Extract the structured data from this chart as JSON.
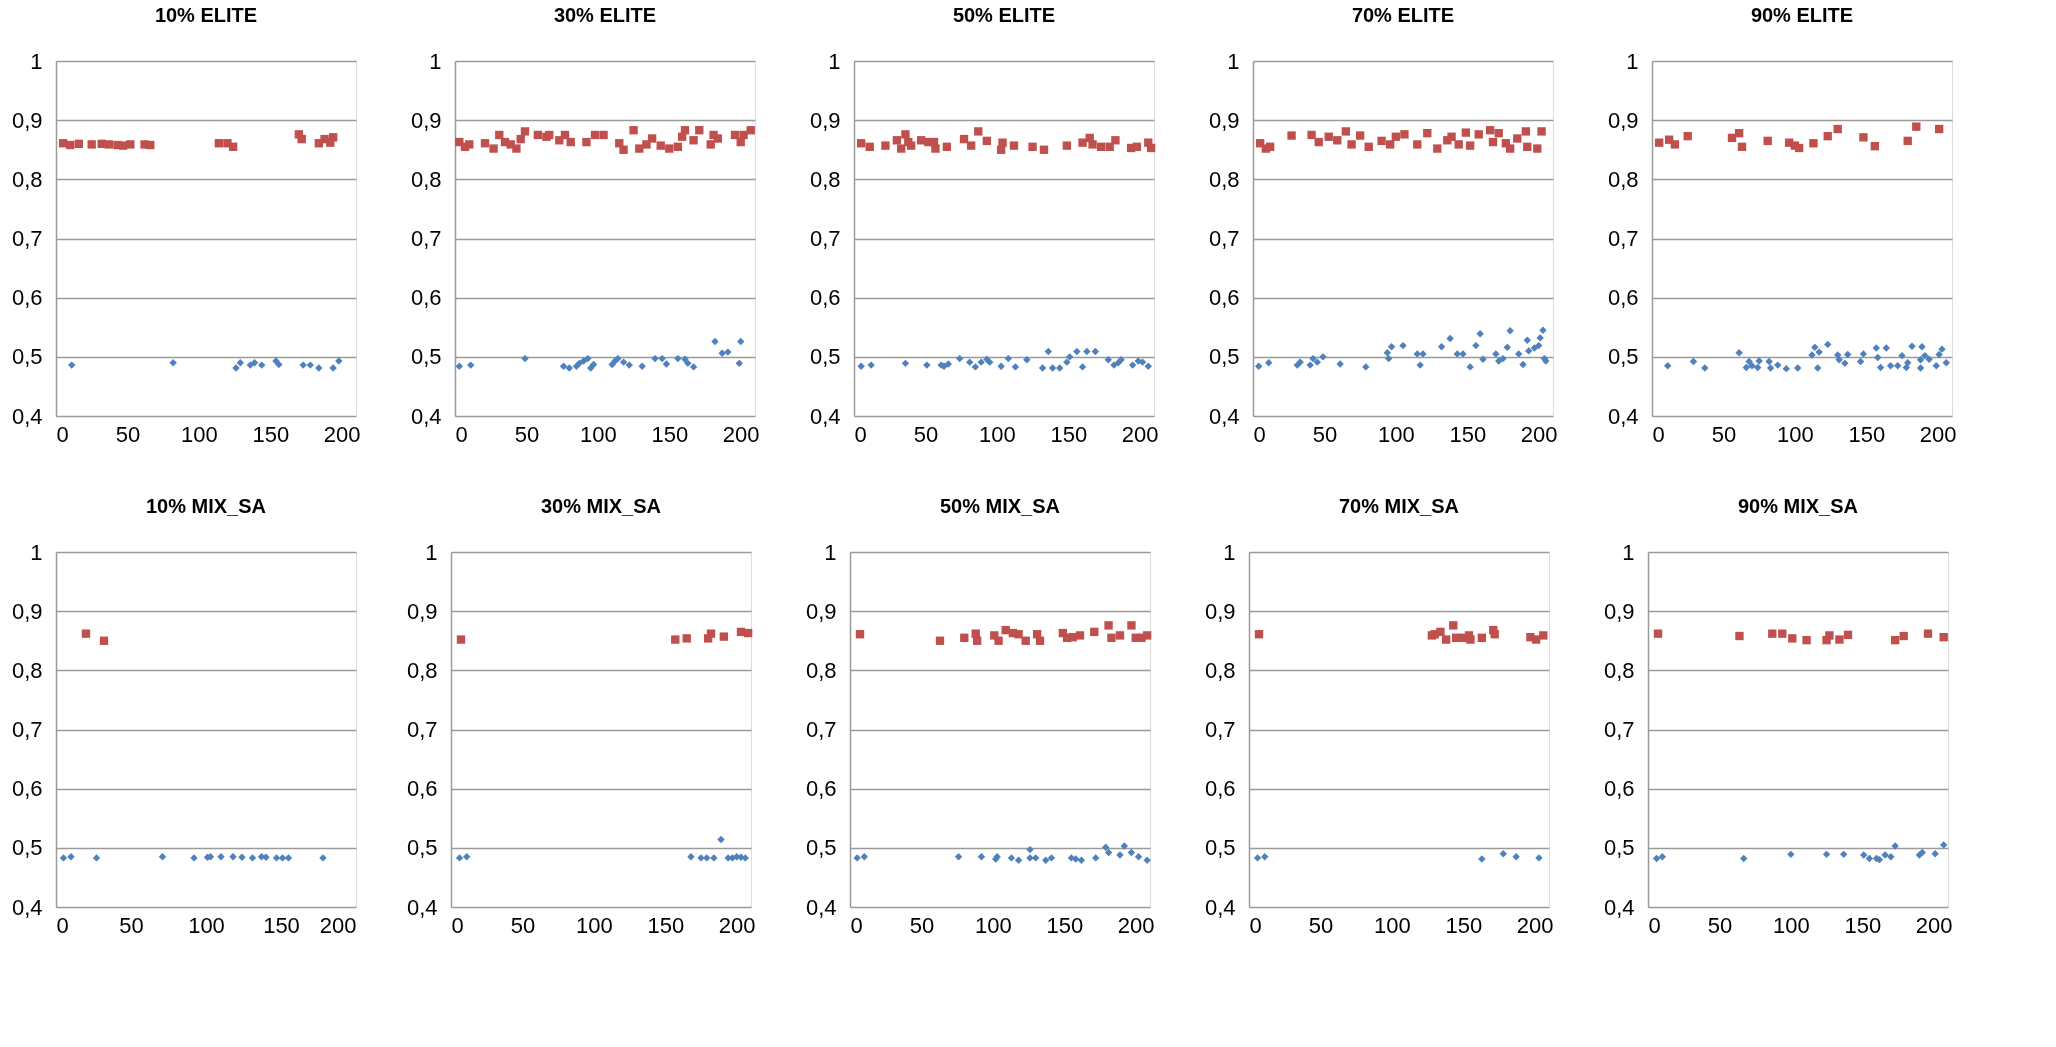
{
  "chart_data": [
    {
      "type": "scatter",
      "title": "10% ELITE",
      "xlim": [
        0,
        210
      ],
      "xticks": [
        0,
        50,
        100,
        150,
        200
      ],
      "ylim": [
        0.4,
        1
      ],
      "yticks": [
        {
          "value": 0.4,
          "label": "0,4"
        },
        {
          "value": 0.5,
          "label": "0,5"
        },
        {
          "value": 0.6,
          "label": "0,6"
        },
        {
          "value": 0.7,
          "label": "0,7"
        },
        {
          "value": 0.8,
          "label": "0,8"
        },
        {
          "value": 0.9,
          "label": "0,9"
        },
        1
      ],
      "grid": "y",
      "series": [
        {
          "color": "#c0504d",
          "marker": "square",
          "x": [
            5,
            10,
            16,
            25,
            32,
            37,
            43,
            47,
            52,
            62,
            66,
            114,
            120,
            124,
            170,
            172,
            184,
            188,
            192,
            194
          ],
          "values": [
            0.861,
            0.858,
            0.86,
            0.859,
            0.86,
            0.859,
            0.858,
            0.857,
            0.859,
            0.859,
            0.858,
            0.861,
            0.861,
            0.855,
            0.876,
            0.868,
            0.861,
            0.868,
            0.862,
            0.871
          ]
        },
        {
          "color": "#4f81bd",
          "marker": "diamond",
          "x": [
            11,
            82,
            126,
            129,
            136,
            139,
            144,
            154,
            156,
            173,
            178,
            184,
            194,
            198
          ],
          "values": [
            0.486,
            0.49,
            0.481,
            0.49,
            0.486,
            0.49,
            0.486,
            0.493,
            0.487,
            0.486,
            0.486,
            0.481,
            0.481,
            0.493
          ]
        }
      ]
    },
    {
      "type": "scatter",
      "title": "30% ELITE",
      "xlim": [
        0,
        210
      ],
      "xticks": [
        0,
        50,
        100,
        150,
        200
      ],
      "ylim": [
        0.4,
        1
      ],
      "yticks": [
        {
          "value": 0.4,
          "label": "0,4"
        },
        {
          "value": 0.5,
          "label": "0,5"
        },
        {
          "value": 0.6,
          "label": "0,6"
        },
        {
          "value": 0.7,
          "label": "0,7"
        },
        {
          "value": 0.8,
          "label": "0,8"
        },
        {
          "value": 0.9,
          "label": "0,9"
        },
        1
      ],
      "grid": "y",
      "series": [
        {
          "color": "#c0504d",
          "marker": "square",
          "x": [
            3,
            7,
            10,
            21,
            27,
            31,
            35,
            39,
            43,
            46,
            49,
            58,
            64,
            66,
            73,
            77,
            81,
            92,
            98,
            104,
            115,
            118,
            125,
            129,
            134,
            138,
            144,
            150,
            156,
            159,
            161,
            167,
            171,
            179,
            181,
            184,
            196,
            200,
            202,
            207
          ],
          "values": [
            0.863,
            0.855,
            0.859,
            0.861,
            0.852,
            0.875,
            0.863,
            0.859,
            0.852,
            0.868,
            0.881,
            0.875,
            0.872,
            0.875,
            0.866,
            0.875,
            0.863,
            0.863,
            0.875,
            0.875,
            0.861,
            0.85,
            0.883,
            0.852,
            0.859,
            0.869,
            0.857,
            0.852,
            0.855,
            0.872,
            0.883,
            0.866,
            0.883,
            0.859,
            0.875,
            0.869,
            0.875,
            0.863,
            0.875,
            0.883
          ]
        },
        {
          "color": "#4f81bd",
          "marker": "diamond",
          "x": [
            3,
            11,
            49,
            76,
            80,
            85,
            87,
            90,
            93,
            95,
            97,
            110,
            112,
            114,
            118,
            122,
            131,
            140,
            145,
            148,
            156,
            161,
            163,
            167,
            182,
            187,
            191,
            199,
            200
          ],
          "values": [
            0.484,
            0.486,
            0.497,
            0.484,
            0.481,
            0.484,
            0.489,
            0.493,
            0.497,
            0.481,
            0.487,
            0.487,
            0.493,
            0.497,
            0.491,
            0.486,
            0.484,
            0.497,
            0.497,
            0.488,
            0.497,
            0.496,
            0.489,
            0.483,
            0.526,
            0.506,
            0.508,
            0.489,
            0.526
          ]
        }
      ]
    },
    {
      "type": "scatter",
      "title": "50% ELITE",
      "xlim": [
        0,
        210
      ],
      "xticks": [
        0,
        50,
        100,
        150,
        200
      ],
      "ylim": [
        0.4,
        1
      ],
      "yticks": [
        {
          "value": 0.4,
          "label": "0,4"
        },
        {
          "value": 0.5,
          "label": "0,5"
        },
        {
          "value": 0.6,
          "label": "0,6"
        },
        {
          "value": 0.7,
          "label": "0,7"
        },
        {
          "value": 0.8,
          "label": "0,8"
        },
        {
          "value": 0.9,
          "label": "0,9"
        },
        1
      ],
      "grid": "y",
      "series": [
        {
          "color": "#c0504d",
          "marker": "square",
          "x": [
            5,
            11,
            22,
            30,
            33,
            36,
            38,
            40,
            47,
            52,
            56,
            57,
            65,
            77,
            82,
            87,
            93,
            103,
            104,
            112,
            125,
            133,
            149,
            160,
            165,
            167,
            173,
            179,
            183,
            194,
            198,
            206,
            208
          ],
          "values": [
            0.861,
            0.855,
            0.857,
            0.866,
            0.852,
            0.876,
            0.863,
            0.857,
            0.866,
            0.863,
            0.863,
            0.852,
            0.855,
            0.868,
            0.857,
            0.881,
            0.865,
            0.85,
            0.862,
            0.857,
            0.855,
            0.85,
            0.857,
            0.862,
            0.87,
            0.859,
            0.855,
            0.855,
            0.866,
            0.853,
            0.855,
            0.862,
            0.853
          ]
        },
        {
          "color": "#4f81bd",
          "marker": "diamond",
          "x": [
            5,
            12,
            36,
            51,
            61,
            63,
            66,
            74,
            81,
            85,
            89,
            93,
            95,
            103,
            108,
            113,
            121,
            132,
            136,
            139,
            144,
            149,
            151,
            156,
            160,
            163,
            169,
            178,
            182,
            185,
            187,
            195,
            199,
            202,
            206
          ],
          "values": [
            0.484,
            0.486,
            0.489,
            0.486,
            0.486,
            0.484,
            0.488,
            0.497,
            0.491,
            0.483,
            0.491,
            0.496,
            0.491,
            0.484,
            0.497,
            0.483,
            0.495,
            0.481,
            0.509,
            0.481,
            0.481,
            0.491,
            0.5,
            0.509,
            0.483,
            0.509,
            0.509,
            0.495,
            0.486,
            0.49,
            0.495,
            0.486,
            0.493,
            0.491,
            0.484
          ]
        }
      ]
    },
    {
      "type": "scatter",
      "title": "70% ELITE",
      "xlim": [
        0,
        210
      ],
      "xticks": [
        0,
        50,
        100,
        150,
        200
      ],
      "ylim": [
        0.4,
        1
      ],
      "yticks": [
        {
          "value": 0.4,
          "label": "0,4"
        },
        {
          "value": 0.5,
          "label": "0,5"
        },
        {
          "value": 0.6,
          "label": "0,6"
        },
        {
          "value": 0.7,
          "label": "0,7"
        },
        {
          "value": 0.8,
          "label": "0,8"
        },
        {
          "value": 0.9,
          "label": "0,9"
        },
        1
      ],
      "grid": "y",
      "series": [
        {
          "color": "#c0504d",
          "marker": "square",
          "x": [
            5,
            9,
            12,
            27,
            41,
            46,
            53,
            59,
            65,
            69,
            75,
            81,
            90,
            96,
            100,
            106,
            115,
            122,
            129,
            136,
            139,
            144,
            149,
            152,
            158,
            166,
            168,
            172,
            177,
            180,
            185,
            191,
            192,
            199,
            202
          ],
          "values": [
            0.861,
            0.852,
            0.855,
            0.874,
            0.875,
            0.863,
            0.872,
            0.866,
            0.881,
            0.859,
            0.874,
            0.855,
            0.865,
            0.859,
            0.872,
            0.876,
            0.859,
            0.878,
            0.852,
            0.866,
            0.872,
            0.859,
            0.879,
            0.857,
            0.876,
            0.883,
            0.863,
            0.878,
            0.861,
            0.852,
            0.869,
            0.881,
            0.855,
            0.852,
            0.881
          ]
        },
        {
          "color": "#4f81bd",
          "marker": "diamond",
          "x": [
            4,
            11,
            31,
            33,
            40,
            42,
            45,
            49,
            61,
            79,
            94,
            95,
            97,
            105,
            115,
            117,
            119,
            132,
            138,
            143,
            147,
            152,
            156,
            159,
            161,
            170,
            172,
            175,
            178,
            180,
            186,
            189,
            192,
            193,
            197,
            200,
            201,
            203,
            204,
            205
          ],
          "values": [
            0.484,
            0.49,
            0.486,
            0.491,
            0.486,
            0.497,
            0.491,
            0.5,
            0.488,
            0.483,
            0.507,
            0.497,
            0.517,
            0.519,
            0.505,
            0.486,
            0.505,
            0.517,
            0.531,
            0.505,
            0.505,
            0.483,
            0.519,
            0.539,
            0.496,
            0.505,
            0.493,
            0.497,
            0.516,
            0.544,
            0.505,
            0.487,
            0.528,
            0.51,
            0.515,
            0.519,
            0.532,
            0.545,
            0.497,
            0.493
          ]
        }
      ]
    },
    {
      "type": "scatter",
      "title": "90% ELITE",
      "xlim": [
        0,
        210
      ],
      "xticks": [
        0,
        50,
        100,
        150,
        200
      ],
      "ylim": [
        0.4,
        1
      ],
      "yticks": [
        {
          "value": 0.4,
          "label": "0,4"
        },
        {
          "value": 0.5,
          "label": "0,5"
        },
        {
          "value": 0.6,
          "label": "0,6"
        },
        {
          "value": 0.7,
          "label": "0,7"
        },
        {
          "value": 0.8,
          "label": "0,8"
        },
        {
          "value": 0.9,
          "label": "0,9"
        },
        1
      ],
      "grid": "y",
      "series": [
        {
          "color": "#c0504d",
          "marker": "square",
          "x": [
            5,
            12,
            16,
            25,
            56,
            61,
            63,
            81,
            96,
            100,
            103,
            113,
            123,
            130,
            148,
            156,
            179,
            185,
            201
          ],
          "values": [
            0.862,
            0.867,
            0.859,
            0.873,
            0.87,
            0.878,
            0.855,
            0.865,
            0.862,
            0.857,
            0.853,
            0.861,
            0.873,
            0.885,
            0.871,
            0.856,
            0.865,
            0.889,
            0.885
          ]
        },
        {
          "color": "#4f81bd",
          "marker": "diamond",
          "x": [
            11,
            29,
            37,
            61,
            66,
            68,
            70,
            74,
            75,
            82,
            83,
            88,
            94,
            102,
            112,
            114,
            116,
            117,
            123,
            130,
            131,
            135,
            137,
            146,
            148,
            157,
            158,
            160,
            164,
            167,
            172,
            175,
            178,
            179,
            182,
            188,
            188,
            189,
            191,
            194,
            199,
            201,
            203,
            206
          ],
          "values": [
            0.485,
            0.492,
            0.481,
            0.507,
            0.482,
            0.492,
            0.485,
            0.482,
            0.493,
            0.492,
            0.481,
            0.486,
            0.48,
            0.481,
            0.503,
            0.516,
            0.481,
            0.508,
            0.521,
            0.503,
            0.495,
            0.489,
            0.504,
            0.492,
            0.505,
            0.515,
            0.499,
            0.482,
            0.515,
            0.485,
            0.485,
            0.502,
            0.482,
            0.49,
            0.518,
            0.495,
            0.481,
            0.517,
            0.502,
            0.496,
            0.485,
            0.504,
            0.513,
            0.49
          ]
        }
      ]
    },
    {
      "type": "scatter",
      "title": "10% MIX_SA",
      "xlim": [
        0,
        200
      ],
      "xticks": [
        0,
        50,
        100,
        150,
        200
      ],
      "ylim": [
        0.4,
        1
      ],
      "yticks": [
        {
          "value": 0.4,
          "label": "0,4"
        },
        {
          "value": 0.5,
          "label": "0,5"
        },
        {
          "value": 0.6,
          "label": "0,6"
        },
        {
          "value": 0.7,
          "label": "0,7"
        },
        {
          "value": 0.8,
          "label": "0,8"
        },
        {
          "value": 0.9,
          "label": "0,9"
        },
        1
      ],
      "grid": "y",
      "series": [
        {
          "color": "#c0504d",
          "marker": "square",
          "x": [
            20,
            32
          ],
          "values": [
            0.862,
            0.85
          ]
        },
        {
          "color": "#4f81bd",
          "marker": "diamond",
          "x": [
            5,
            10,
            27,
            71,
            92,
            101,
            103,
            110,
            118,
            124,
            131,
            137,
            140,
            147,
            151,
            155,
            178
          ],
          "values": [
            0.483,
            0.485,
            0.483,
            0.485,
            0.483,
            0.484,
            0.485,
            0.485,
            0.485,
            0.484,
            0.483,
            0.485,
            0.484,
            0.483,
            0.483,
            0.483,
            0.483
          ]
        }
      ]
    },
    {
      "type": "scatter",
      "title": "30% MIX_SA",
      "xlim": [
        0,
        210
      ],
      "xticks": [
        0,
        50,
        100,
        150,
        200
      ],
      "ylim": [
        0.4,
        1
      ],
      "yticks": [
        {
          "value": 0.4,
          "label": "0,4"
        },
        {
          "value": 0.5,
          "label": "0,5"
        },
        {
          "value": 0.6,
          "label": "0,6"
        },
        {
          "value": 0.7,
          "label": "0,7"
        },
        {
          "value": 0.8,
          "label": "0,8"
        },
        {
          "value": 0.9,
          "label": "0,9"
        },
        1
      ],
      "grid": "y",
      "series": [
        {
          "color": "#c0504d",
          "marker": "square",
          "x": [
            7,
            157,
            165,
            180,
            182,
            191,
            203,
            208
          ],
          "values": [
            0.852,
            0.852,
            0.854,
            0.854,
            0.862,
            0.857,
            0.865,
            0.863
          ]
        },
        {
          "color": "#4f81bd",
          "marker": "diamond",
          "x": [
            6,
            11,
            168,
            175,
            179,
            184,
            189,
            194,
            197,
            200,
            203,
            206
          ],
          "values": [
            0.483,
            0.485,
            0.485,
            0.483,
            0.483,
            0.483,
            0.514,
            0.483,
            0.483,
            0.485,
            0.484,
            0.483
          ]
        }
      ]
    },
    {
      "type": "scatter",
      "title": "50% MIX_SA",
      "xlim": [
        0,
        210
      ],
      "xticks": [
        0,
        50,
        100,
        150,
        200
      ],
      "ylim": [
        0.4,
        1
      ],
      "yticks": [
        {
          "value": 0.4,
          "label": "0,4"
        },
        {
          "value": 0.5,
          "label": "0,5"
        },
        {
          "value": 0.6,
          "label": "0,6"
        },
        {
          "value": 0.7,
          "label": "0,7"
        },
        {
          "value": 0.8,
          "label": "0,8"
        },
        {
          "value": 0.9,
          "label": "0,9"
        },
        1
      ],
      "grid": "y",
      "series": [
        {
          "color": "#c0504d",
          "marker": "square",
          "x": [
            7,
            63,
            80,
            88,
            89,
            101,
            104,
            109,
            114,
            118,
            123,
            131,
            133,
            149,
            152,
            156,
            161,
            171,
            181,
            183,
            189,
            197,
            200,
            204,
            208
          ],
          "values": [
            0.861,
            0.85,
            0.855,
            0.862,
            0.85,
            0.859,
            0.85,
            0.868,
            0.863,
            0.861,
            0.85,
            0.861,
            0.85,
            0.863,
            0.855,
            0.856,
            0.859,
            0.865,
            0.876,
            0.855,
            0.859,
            0.876,
            0.855,
            0.855,
            0.859
          ]
        },
        {
          "color": "#4f81bd",
          "marker": "diamond",
          "x": [
            5,
            10,
            76,
            92,
            102,
            103,
            113,
            118,
            126,
            126,
            130,
            137,
            141,
            155,
            158,
            162,
            172,
            179,
            181,
            189,
            192,
            197,
            202,
            208
          ],
          "values": [
            0.483,
            0.485,
            0.485,
            0.485,
            0.481,
            0.485,
            0.483,
            0.479,
            0.497,
            0.483,
            0.483,
            0.479,
            0.483,
            0.483,
            0.481,
            0.479,
            0.483,
            0.501,
            0.492,
            0.488,
            0.503,
            0.492,
            0.485,
            0.479
          ]
        }
      ]
    },
    {
      "type": "scatter",
      "title": "70% MIX_SA",
      "xlim": [
        0,
        210
      ],
      "xticks": [
        0,
        50,
        100,
        150,
        200
      ],
      "ylim": [
        0.4,
        1
      ],
      "yticks": [
        {
          "value": 0.4,
          "label": "0,4"
        },
        {
          "value": 0.5,
          "label": "0,5"
        },
        {
          "value": 0.6,
          "label": "0,6"
        },
        {
          "value": 0.7,
          "label": "0,7"
        },
        {
          "value": 0.8,
          "label": "0,8"
        },
        {
          "value": 0.9,
          "label": "0,9"
        },
        1
      ],
      "grid": "y",
      "series": [
        {
          "color": "#c0504d",
          "marker": "square",
          "x": [
            7,
            128,
            130,
            134,
            138,
            143,
            145,
            150,
            154,
            155,
            163,
            171,
            172,
            197,
            201,
            206
          ],
          "values": [
            0.861,
            0.859,
            0.861,
            0.865,
            0.852,
            0.876,
            0.855,
            0.855,
            0.859,
            0.852,
            0.855,
            0.868,
            0.861,
            0.856,
            0.852,
            0.859
          ]
        },
        {
          "color": "#4f81bd",
          "marker": "diamond",
          "x": [
            6,
            11,
            163,
            178,
            187,
            203
          ],
          "values": [
            0.483,
            0.485,
            0.481,
            0.49,
            0.485,
            0.483
          ]
        }
      ]
    },
    {
      "type": "scatter",
      "title": "90% MIX_SA",
      "xlim": [
        0,
        210
      ],
      "xticks": [
        0,
        50,
        100,
        150,
        200
      ],
      "ylim": [
        0.4,
        1
      ],
      "yticks": [
        {
          "value": 0.4,
          "label": "0,4"
        },
        {
          "value": 0.5,
          "label": "0,5"
        },
        {
          "value": 0.6,
          "label": "0,6"
        },
        {
          "value": 0.7,
          "label": "0,7"
        },
        {
          "value": 0.8,
          "label": "0,8"
        },
        {
          "value": 0.9,
          "label": "0,9"
        },
        1
      ],
      "grid": "y",
      "series": [
        {
          "color": "#c0504d",
          "marker": "square",
          "x": [
            7,
            64,
            87,
            94,
            101,
            111,
            125,
            127,
            134,
            140,
            173,
            179,
            196,
            207
          ],
          "values": [
            0.862,
            0.858,
            0.862,
            0.862,
            0.854,
            0.851,
            0.851,
            0.859,
            0.852,
            0.86,
            0.851,
            0.858,
            0.862,
            0.856
          ]
        },
        {
          "color": "#4f81bd",
          "marker": "diamond",
          "x": [
            6,
            10,
            67,
            100,
            125,
            137,
            151,
            155,
            160,
            162,
            166,
            170,
            173,
            190,
            192,
            201,
            207
          ],
          "values": [
            0.482,
            0.485,
            0.482,
            0.489,
            0.489,
            0.489,
            0.488,
            0.482,
            0.482,
            0.48,
            0.488,
            0.485,
            0.503,
            0.488,
            0.492,
            0.49,
            0.505
          ]
        }
      ]
    }
  ]
}
